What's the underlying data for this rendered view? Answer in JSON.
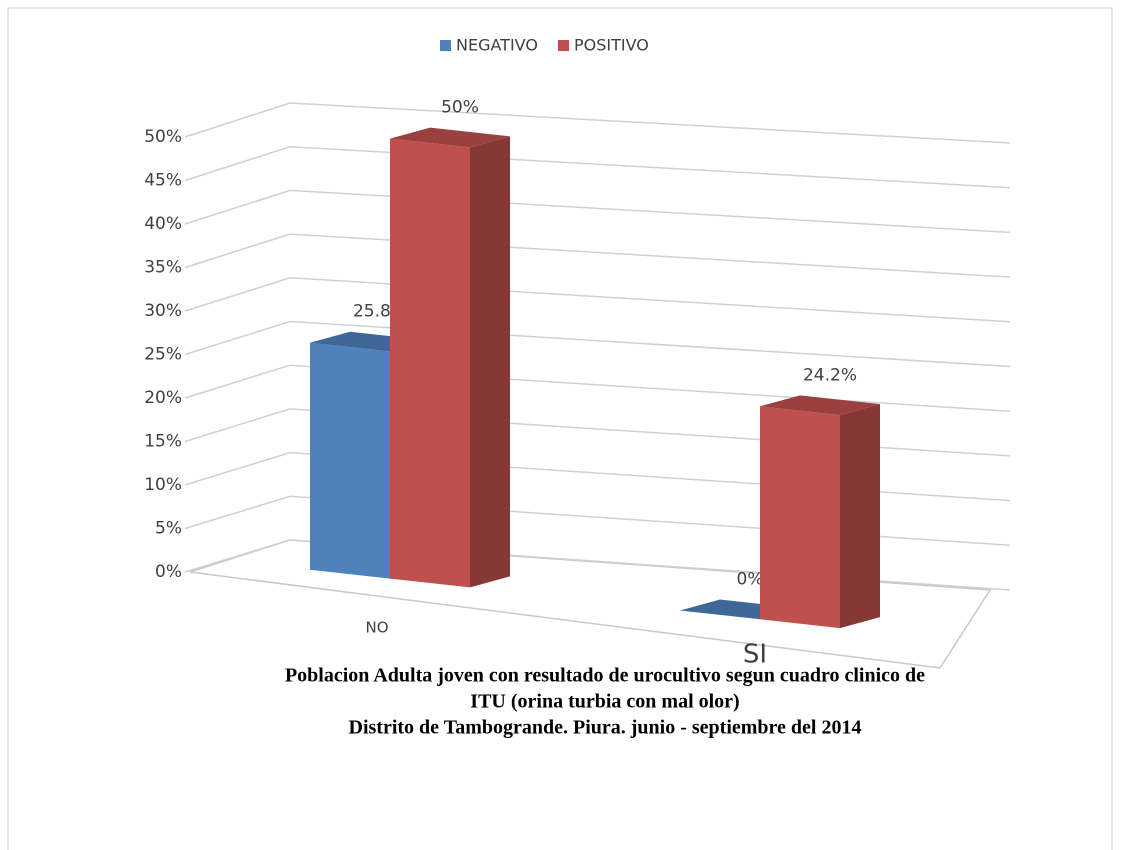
{
  "chart_data": {
    "type": "bar3d",
    "title": [
      "Poblacion Adulta joven con resultado de urocultivo segun cuadro clinico de",
      "ITU (orina turbia con mal olor)",
      "Distrito de Tambogrande. Piura. junio - septiembre del 2014"
    ],
    "categories": [
      "NO",
      "SI"
    ],
    "series": [
      {
        "name": "NEGATIVO",
        "color": "#4f81bd",
        "values": [
          25.8,
          0
        ],
        "value_labels": [
          "25.8%",
          "0%"
        ]
      },
      {
        "name": "POSITIVO",
        "color": "#c0504d",
        "values": [
          50,
          24.2
        ],
        "value_labels": [
          "50%",
          "24.2%"
        ]
      }
    ],
    "ylim": [
      0,
      50
    ],
    "yticks": [
      {
        "value": 0,
        "label": "0%"
      },
      {
        "value": 5,
        "label": "5%"
      },
      {
        "value": 10,
        "label": "10%"
      },
      {
        "value": 15,
        "label": "15%"
      },
      {
        "value": 20,
        "label": "20%"
      },
      {
        "value": 25,
        "label": "25%"
      },
      {
        "value": 30,
        "label": "30%"
      },
      {
        "value": 35,
        "label": "35%"
      },
      {
        "value": 40,
        "label": "40%"
      },
      {
        "value": 45,
        "label": "45%"
      },
      {
        "value": 50,
        "label": "50%"
      }
    ],
    "grid": true,
    "legend": "top"
  }
}
